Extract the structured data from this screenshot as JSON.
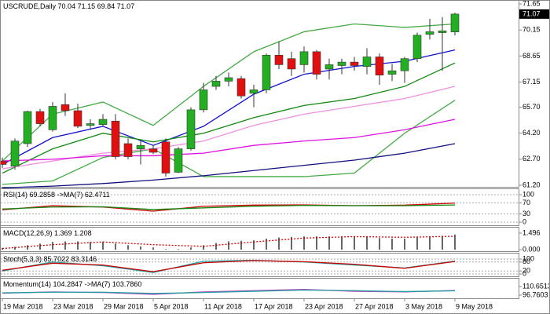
{
  "chart_data": [
    {
      "type": "candlestick",
      "title": "USCRUDE,Daily",
      "categories": [
        "19 Mar 2018",
        null,
        null,
        null,
        "23 Mar 2018",
        null,
        null,
        null,
        "29 Mar 2018",
        null,
        null,
        null,
        "5 Apr 2018",
        null,
        null,
        null,
        "11 Apr 2018",
        null,
        null,
        null,
        "17 Apr 2018",
        null,
        null,
        null,
        "23 Apr 2018",
        null,
        null,
        null,
        "27 Apr 2018",
        null,
        null,
        null,
        "3 May 2018",
        null,
        null,
        null,
        "9 May 2018"
      ],
      "open": [
        62.6,
        62.3,
        63.6,
        65.45,
        64.4,
        65.85,
        65.5,
        64.65,
        64.7,
        64.9,
        63.6,
        63.3,
        63.3,
        63.7,
        61.95,
        63.3,
        65.55,
        66.9,
        67.2,
        67.35,
        66.5,
        66.7,
        68.7,
        68.5,
        68.15,
        68.9,
        67.9,
        68.1,
        68.3,
        68.05,
        68.6,
        67.6,
        67.8,
        68.5,
        69.9,
        70.0,
        70.04
      ],
      "high": [
        62.8,
        63.9,
        65.5,
        65.6,
        66.0,
        66.5,
        65.9,
        65.0,
        65.3,
        65.3,
        63.9,
        63.8,
        63.5,
        63.9,
        63.4,
        65.7,
        67.1,
        67.5,
        67.7,
        67.5,
        67.0,
        68.8,
        69.5,
        68.9,
        69.2,
        69.0,
        68.5,
        68.5,
        68.6,
        69.1,
        68.8,
        68.2,
        68.6,
        70.0,
        70.8,
        70.9,
        71.15
      ],
      "low": [
        62.2,
        62.1,
        63.4,
        64.6,
        64.3,
        65.2,
        64.5,
        64.4,
        64.6,
        62.7,
        62.7,
        62.4,
        63.0,
        61.7,
        61.9,
        63.2,
        65.4,
        66.7,
        66.9,
        66.2,
        65.7,
        66.5,
        67.9,
        67.5,
        67.7,
        67.3,
        67.3,
        67.6,
        67.8,
        67.6,
        67.0,
        67.2,
        67.1,
        68.3,
        69.6,
        67.8,
        69.84
      ],
      "close": [
        62.4,
        63.75,
        65.45,
        64.75,
        65.75,
        65.5,
        64.6,
        64.75,
        65.0,
        62.85,
        62.85,
        63.5,
        63.1,
        61.9,
        63.3,
        65.55,
        66.7,
        67.2,
        67.4,
        66.35,
        66.7,
        68.7,
        68.15,
        67.9,
        68.9,
        67.6,
        68.15,
        68.3,
        68.1,
        68.6,
        67.55,
        67.8,
        68.5,
        69.85,
        70.05,
        70.1,
        71.07
      ],
      "up_color": "#22b022",
      "down_color": "#e01010",
      "lines": [
        {
          "color": "#1010d0",
          "x": [
            0,
            4,
            8,
            12,
            16,
            20,
            24,
            28,
            32,
            36
          ],
          "values": [
            62.4,
            63.95,
            64.6,
            63.5,
            64.6,
            66.45,
            67.6,
            68.05,
            68.35,
            69.0
          ]
        },
        {
          "color": "#118811",
          "x": [
            0,
            4,
            8,
            12,
            16,
            20,
            24,
            28,
            32,
            36
          ],
          "values": [
            61.9,
            63.3,
            64.2,
            63.7,
            64.2,
            65.1,
            65.8,
            66.2,
            66.9,
            68.25
          ]
        },
        {
          "color": "#44aa44",
          "x": [
            0,
            4,
            8,
            12,
            16,
            20,
            24,
            28,
            32,
            36
          ],
          "values": [
            62.6,
            65.3,
            66.0,
            64.65,
            66.9,
            68.9,
            70.05,
            70.5,
            70.3,
            70.5
          ]
        },
        {
          "color": "#44aa44",
          "x": [
            0,
            4,
            8,
            12,
            16,
            20,
            24,
            28,
            32,
            36
          ],
          "values": [
            61.25,
            61.45,
            62.8,
            63.3,
            61.7,
            61.7,
            61.7,
            61.9,
            64.2,
            66.1
          ]
        },
        {
          "color": "#f090e0",
          "x": [
            0,
            4,
            8,
            12,
            16,
            20,
            24,
            28,
            32,
            36
          ],
          "values": [
            62.15,
            62.6,
            63.05,
            63.3,
            63.75,
            64.65,
            65.3,
            65.75,
            66.2,
            66.9
          ]
        },
        {
          "color": "#e010e0",
          "x": [
            0,
            4,
            8,
            12,
            16,
            20,
            24,
            28,
            32,
            36
          ],
          "values": [
            62.6,
            62.7,
            62.9,
            62.9,
            63.05,
            63.5,
            63.75,
            63.95,
            64.4,
            65.0
          ]
        },
        {
          "color": "#101080",
          "x": [
            0,
            4,
            8,
            12,
            16,
            20,
            24,
            28,
            32,
            36
          ],
          "values": [
            61.05,
            61.15,
            61.3,
            61.5,
            61.75,
            62.05,
            62.35,
            62.65,
            63.05,
            63.6
          ]
        }
      ],
      "ylim": [
        61.11,
        71.88
      ],
      "yticks": [
        71.65,
        70.15,
        {
          "value": 68.65,
          "label": "68.65"
        },
        67.15,
        {
          "value": 65.7,
          "label": "65.70"
        },
        {
          "value": 64.2,
          "label": "64.20"
        },
        {
          "value": 62.7,
          "label": "62.70"
        },
        {
          "value": 61.2,
          "label": "61.20"
        }
      ]
    },
    {
      "type": "line",
      "title": "RSI(14)",
      "ma_label": "->MA(7)",
      "readout": [
        69.2858,
        62.4711
      ],
      "series": [
        {
          "color": "#cc0000",
          "x": [
            0,
            4,
            8,
            12,
            16,
            20,
            24,
            28,
            32,
            36
          ],
          "values": [
            45,
            60,
            55,
            40,
            58,
            62,
            63,
            60,
            62,
            69.2858
          ]
        },
        {
          "color": "#118811",
          "x": [
            0,
            4,
            8,
            12,
            16,
            20,
            24,
            28,
            32,
            36
          ],
          "values": [
            48,
            55,
            56,
            46,
            52,
            58,
            61,
            60,
            60,
            62.4711
          ]
        }
      ],
      "ylim": [
        -11.4,
        122.9
      ],
      "yticks": [
        100,
        70,
        30,
        0
      ],
      "grid": true
    },
    {
      "type": "macd",
      "title": "MACD(12,26,9)",
      "readout": [
        1.369,
        1.208
      ],
      "histogram": [
        0.15,
        0.25,
        0.4,
        0.55,
        0.7,
        0.75,
        0.75,
        0.7,
        0.7,
        0.55,
        0.4,
        0.3,
        0.2,
        0.05,
        0.05,
        0.2,
        0.4,
        0.6,
        0.75,
        0.8,
        0.85,
        1.0,
        1.1,
        1.15,
        1.2,
        1.2,
        1.2,
        1.2,
        1.15,
        1.15,
        1.05,
        1.0,
        1.0,
        1.1,
        1.2,
        1.25,
        1.369
      ],
      "histogram_color": "#666666",
      "series": [
        {
          "color": "#cc0000",
          "x": [
            0,
            4,
            8,
            12,
            16,
            20,
            24,
            28,
            32,
            36
          ],
          "values": [
            0.1,
            0.45,
            0.7,
            0.45,
            0.3,
            0.7,
            1.05,
            1.18,
            1.12,
            1.208
          ]
        }
      ],
      "ylim": [
        -0.142,
        2.066
      ],
      "yticks": [
        1.496,
        {
          "value": 0,
          "label": "0.000"
        }
      ],
      "grid": false
    },
    {
      "type": "line",
      "title": "Stoch(5,3,3)",
      "readout": [
        85.7022,
        83.3146
      ],
      "series": [
        {
          "color": "#20a0a0",
          "x": [
            0,
            4,
            8,
            12,
            16,
            20,
            24,
            28,
            32,
            36
          ],
          "values": [
            20,
            80,
            55,
            10,
            85,
            92,
            80,
            60,
            40,
            85.7022
          ]
        },
        {
          "color": "#cc0000",
          "x": [
            0,
            4,
            8,
            12,
            16,
            20,
            24,
            28,
            32,
            36
          ],
          "values": [
            25,
            72,
            60,
            15,
            75,
            90,
            82,
            65,
            38,
            83.3146
          ]
        }
      ],
      "ylim": [
        -15.8,
        142
      ],
      "yticks": [
        100,
        80,
        20,
        0
      ],
      "grid": true
    },
    {
      "type": "line",
      "title": "Momentum(14)",
      "ma_label": "->MA(7)",
      "readout": [
        104.2847,
        {
          "value": 103.786,
          "label": "103.7860"
        }
      ],
      "series": [
        {
          "color": "#c040c0",
          "x": [
            0,
            4,
            8,
            12,
            16,
            20,
            24,
            28,
            32,
            36
          ],
          "values": [
            100,
            102,
            101,
            98,
            102,
            104,
            106,
            103,
            102,
            104.2847
          ]
        },
        {
          "color": "#20a0a0",
          "x": [
            0,
            4,
            8,
            12,
            16,
            20,
            24,
            28,
            32,
            36
          ],
          "values": [
            100.5,
            101.5,
            101.5,
            99.5,
            101,
            103,
            105,
            104,
            102.5,
            103.786
          ]
        }
      ],
      "ylim": [
        91.71,
        124.54
      ],
      "yticks": [
        110.6513,
        96.7603
      ],
      "grid": false
    }
  ]
}
